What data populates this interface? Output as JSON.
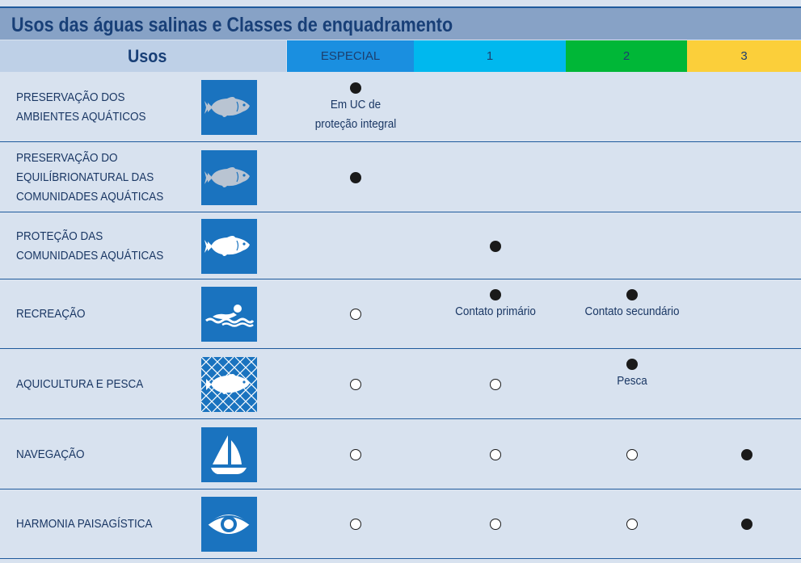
{
  "title": "Usos das águas salinas e Classes de enquadramento",
  "header": {
    "usos": "Usos",
    "classes": [
      {
        "label": "ESPECIAL",
        "color": "#1a8fe0"
      },
      {
        "label": "1",
        "color": "#00b8ee"
      },
      {
        "label": "2",
        "color": "#00b737"
      },
      {
        "label": "3",
        "color": "#fbcf3a"
      }
    ]
  },
  "colors": {
    "title_bar": "#87a2c6",
    "icon_bg": "#1a73bf",
    "background": "#d8e2ef"
  },
  "rows": [
    {
      "lines": [
        "PRESERVAÇÃO DOS",
        "AMBIENTES AQUÁTICOS"
      ],
      "icon": "fish-icon",
      "especial": "filled",
      "c1": "",
      "c2": "",
      "c3": "",
      "note_especial": [
        "Em UC de",
        "proteção integral"
      ]
    },
    {
      "lines": [
        "PRESERVAÇÃO DO",
        "EQUILÍBRIONATURAL DAS",
        "COMUNIDADES AQUÁTICAS"
      ],
      "icon": "fish-icon",
      "especial": "filled",
      "c1": "",
      "c2": "",
      "c3": ""
    },
    {
      "lines": [
        "PROTEÇÃO DAS",
        "COMUNIDADES AQUÁTICAS"
      ],
      "icon": "fish-icon",
      "especial": "",
      "c1": "filled",
      "c2": "",
      "c3": ""
    },
    {
      "lines": [
        "RECREAÇÃO"
      ],
      "icon": "swimmer-icon",
      "especial": "open",
      "c1": "filled",
      "c2": "filled",
      "c3": "",
      "note_c1": [
        "Contato primário"
      ],
      "note_c2": [
        "Contato secundário"
      ]
    },
    {
      "lines": [
        "AQUICULTURA E PESCA"
      ],
      "icon": "fishing-net-icon",
      "especial": "open",
      "c1": "open",
      "c2": "filled",
      "c3": "",
      "note_c2": [
        "Pesca"
      ]
    },
    {
      "lines": [
        "NAVEGAÇÃO"
      ],
      "icon": "sailboat-icon",
      "especial": "open",
      "c1": "open",
      "c2": "open",
      "c3": "filled"
    },
    {
      "lines": [
        "HARMONIA PAISAGÍSTICA"
      ],
      "icon": "eye-icon",
      "especial": "open",
      "c1": "open",
      "c2": "open",
      "c3": "filled"
    }
  ]
}
